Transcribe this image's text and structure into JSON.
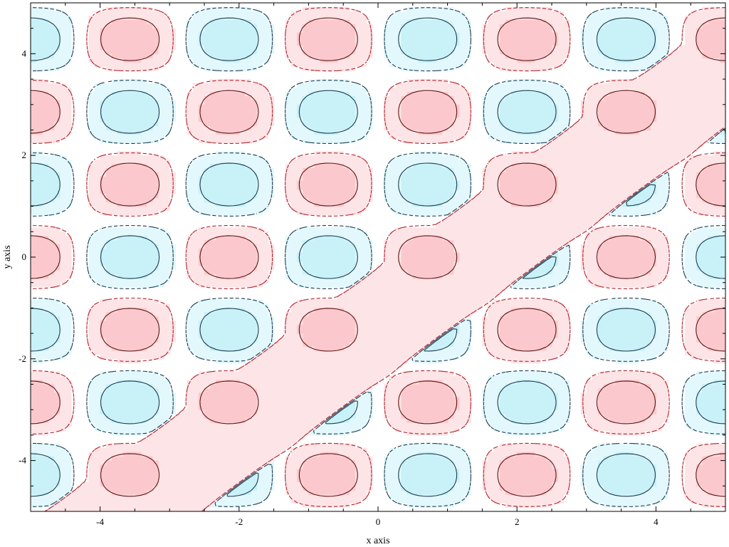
{
  "chart_data": {
    "type": "contour",
    "xlabel": "x axis",
    "ylabel": "y axis",
    "xlim": [
      -5,
      5
    ],
    "ylim": [
      -5,
      5
    ],
    "xticks": [
      -4,
      -2,
      0,
      2,
      4
    ],
    "yticks": [
      -4,
      -2,
      0,
      2,
      4
    ],
    "xtick_labels": [
      "-4",
      "-2",
      "0",
      "2",
      "4"
    ],
    "ytick_labels": [
      "-4",
      "-2",
      "0",
      "2",
      "4"
    ],
    "grid": false,
    "field": "f(x,y) = sin(2.2x) * cos(2.2y)  plus a positive band along y = x - 1.3",
    "diagonal_band": {
      "slope": 1,
      "center_offset": -1.3,
      "half_width": 0.8
    },
    "contour_levels": [
      {
        "level": -0.6,
        "style": "solid",
        "region": "below"
      },
      {
        "level": -0.2,
        "style": "dashed",
        "region": "below"
      },
      {
        "level": 0.2,
        "style": "dashed",
        "region": "above"
      },
      {
        "level": 0.6,
        "style": "solid",
        "region": "above"
      }
    ],
    "colors": {
      "negative_fill_light": "#e2f8fc",
      "negative_fill_dark": "#c8f1f8",
      "negative_line": "#1b3a4e",
      "positive_fill_light": "#fde4e6",
      "positive_fill_dark": "#fbc9cd",
      "positive_line": "#5a1414",
      "positive_dash_line": "#b0202a",
      "axis": "#000000"
    }
  }
}
